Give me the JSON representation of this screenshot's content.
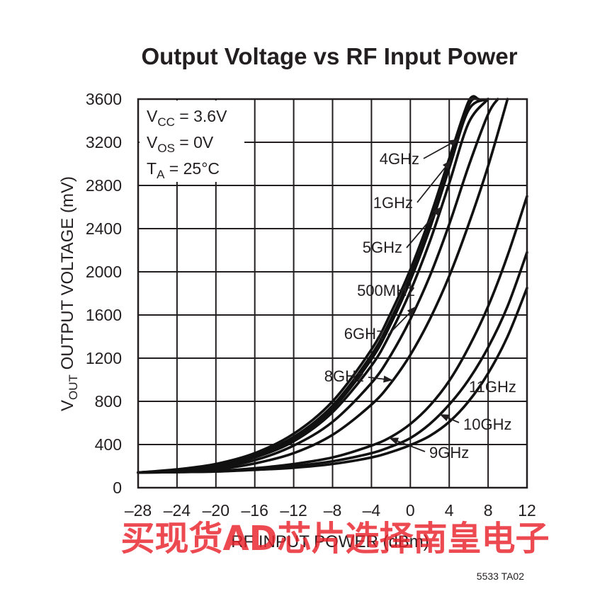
{
  "chart_data": {
    "type": "line",
    "title": "Output Voltage vs RF Input Power",
    "xlabel": "RF INPUT POWER (dBm)",
    "ylabel": {
      "main": "V",
      "sub": "OUT",
      "rest": " OUTPUT VOLTAGE (mV)"
    },
    "xlim": [
      -28,
      12
    ],
    "ylim": [
      0,
      3600
    ],
    "xticks": [
      -28,
      -24,
      -20,
      -16,
      -12,
      -8,
      -4,
      0,
      4,
      8,
      12
    ],
    "xtick_labels": [
      "–28",
      "–24",
      "–20",
      "–16",
      "–12",
      "–8",
      "–4",
      "0",
      "4",
      "8",
      "12"
    ],
    "yticks": [
      0,
      400,
      800,
      1200,
      1600,
      2000,
      2400,
      2800,
      3200,
      3600
    ],
    "ytick_labels": [
      "0",
      "400",
      "800",
      "1200",
      "1600",
      "2000",
      "2400",
      "2800",
      "3200",
      "3600"
    ],
    "grid": true,
    "conditions": [
      {
        "main": "V",
        "sub": "CC",
        "rest": " = 3.6V"
      },
      {
        "main": "V",
        "sub": "OS",
        "rest": " = 0V"
      },
      {
        "main": "T",
        "sub": "A",
        "rest": " = 25°C"
      }
    ],
    "series": [
      {
        "name": "500MHz",
        "x": [
          -28,
          -24,
          -20,
          -16,
          -12,
          -8,
          -4,
          -2,
          0,
          2,
          4,
          6,
          7
        ],
        "y": [
          140,
          170,
          220,
          320,
          500,
          800,
          1280,
          1620,
          2020,
          2500,
          3050,
          3580,
          3600
        ]
      },
      {
        "name": "1GHz",
        "x": [
          -28,
          -24,
          -20,
          -16,
          -12,
          -8,
          -4,
          -2,
          0,
          2,
          4,
          6,
          7
        ],
        "y": [
          140,
          165,
          210,
          305,
          470,
          760,
          1230,
          1560,
          1960,
          2430,
          2980,
          3540,
          3600
        ]
      },
      {
        "name": "4GHz",
        "x": [
          -28,
          -24,
          -20,
          -16,
          -12,
          -8,
          -4,
          -2,
          0,
          2,
          4,
          6,
          8
        ],
        "y": [
          140,
          162,
          200,
          290,
          450,
          730,
          1190,
          1520,
          1920,
          2400,
          2960,
          3500,
          3600
        ]
      },
      {
        "name": "5GHz",
        "x": [
          -28,
          -24,
          -20,
          -16,
          -12,
          -8,
          -4,
          -2,
          0,
          2,
          4,
          6,
          8
        ],
        "y": [
          140,
          160,
          195,
          280,
          430,
          700,
          1130,
          1440,
          1820,
          2280,
          2820,
          3380,
          3600
        ]
      },
      {
        "name": "6GHz",
        "x": [
          -28,
          -24,
          -20,
          -16,
          -12,
          -8,
          -4,
          -2,
          0,
          2,
          4,
          6,
          8,
          9
        ],
        "y": [
          140,
          155,
          185,
          255,
          390,
          610,
          970,
          1230,
          1560,
          1960,
          2440,
          2980,
          3460,
          3600
        ]
      },
      {
        "name": "8GHz",
        "x": [
          -28,
          -24,
          -20,
          -16,
          -12,
          -8,
          -4,
          -2,
          0,
          2,
          4,
          6,
          8,
          10
        ],
        "y": [
          140,
          150,
          170,
          225,
          320,
          490,
          770,
          970,
          1230,
          1560,
          1960,
          2440,
          2980,
          3600
        ]
      },
      {
        "name": "9GHz",
        "x": [
          -28,
          -24,
          -20,
          -16,
          -12,
          -8,
          -4,
          -2,
          0,
          2,
          4,
          6,
          8,
          10,
          12
        ],
        "y": [
          140,
          145,
          155,
          180,
          220,
          280,
          390,
          470,
          590,
          760,
          990,
          1300,
          1680,
          2150,
          2700
        ]
      },
      {
        "name": "10GHz",
        "x": [
          -28,
          -24,
          -20,
          -16,
          -12,
          -8,
          -4,
          -2,
          0,
          2,
          4,
          6,
          8,
          10,
          12
        ],
        "y": [
          140,
          145,
          150,
          170,
          200,
          245,
          320,
          380,
          460,
          590,
          770,
          1000,
          1300,
          1680,
          2180
        ]
      },
      {
        "name": "11GHz",
        "x": [
          -28,
          -24,
          -20,
          -16,
          -12,
          -8,
          -4,
          -2,
          0,
          2,
          4,
          6,
          8,
          10,
          12
        ],
        "y": [
          140,
          145,
          150,
          165,
          185,
          220,
          280,
          330,
          395,
          480,
          610,
          800,
          1060,
          1400,
          1850
        ]
      }
    ],
    "annotations": [
      {
        "text": "4GHz",
        "series": "4GHz"
      },
      {
        "text": "1GHz",
        "series": "1GHz"
      },
      {
        "text": "5GHz",
        "series": "5GHz"
      },
      {
        "text": "500MHz",
        "series": "500MHz"
      },
      {
        "text": "6GHz",
        "series": "6GHz"
      },
      {
        "text": "8GHz",
        "series": "8GHz"
      },
      {
        "text": "11GHz",
        "series": "11GHz"
      },
      {
        "text": "10GHz",
        "series": "10GHz"
      },
      {
        "text": "9GHz",
        "series": "9GHz"
      }
    ],
    "figure_number": "5533 TA02"
  },
  "watermark": "买现货AD芯片选择南皇电子",
  "colors": {
    "ink": "#231f20",
    "watermark": "#e8212b"
  }
}
